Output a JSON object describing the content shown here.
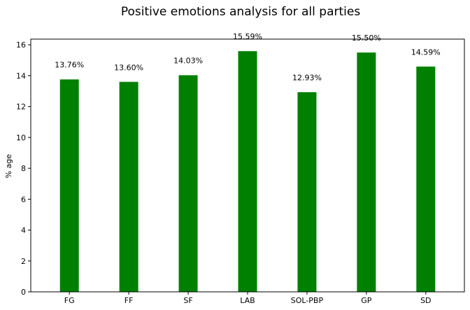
{
  "chart_data": {
    "type": "bar",
    "title": "Positive emotions analysis for all parties",
    "xlabel": "",
    "ylabel": "% age",
    "categories": [
      "FG",
      "FF",
      "SF",
      "LAB",
      "SOL-PBP",
      "GP",
      "SD"
    ],
    "values": [
      13.76,
      13.6,
      14.03,
      15.59,
      12.93,
      15.5,
      14.59
    ],
    "data_labels": [
      "13.76%",
      "13.60%",
      "14.03%",
      "15.59%",
      "12.93%",
      "15.50%",
      "14.59%"
    ],
    "ylim": [
      0,
      16.37
    ],
    "yticks": [
      0,
      2,
      4,
      6,
      8,
      10,
      12,
      14,
      16
    ],
    "grid": false,
    "bar_color": "#008000"
  }
}
